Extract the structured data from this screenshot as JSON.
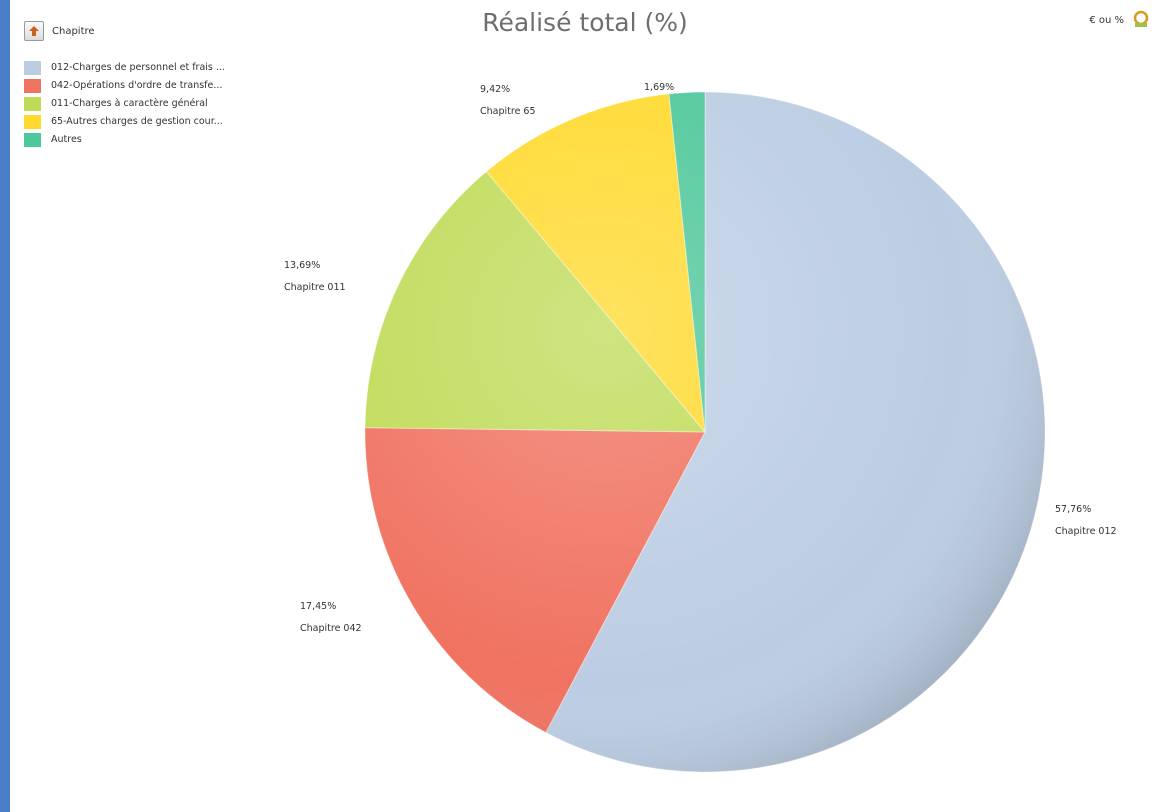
{
  "chart_data": {
    "type": "pie",
    "title": "Réalisé total (%)",
    "legend_title": "Chapitre",
    "legend_position": "top-left",
    "unit_toggle": "€ ou %",
    "slices": [
      {
        "legend": "012-Charges de personnel et frais ...",
        "label": "Chapitre 012",
        "percent_text": "57,76%",
        "value": 57.76,
        "color": "#bccde3"
      },
      {
        "legend": "042-Opérations d'ordre de transfe...",
        "label": "Chapitre 042",
        "percent_text": "17,45%",
        "value": 17.45,
        "color": "#f07260"
      },
      {
        "legend": "011-Charges à caractère général",
        "label": "Chapitre 011",
        "percent_text": "13,69%",
        "value": 13.69,
        "color": "#bfdb57"
      },
      {
        "legend": "65-Autres charges de gestion cour...",
        "label": "Chapitre 65",
        "percent_text": "9,42%",
        "value": 9.42,
        "color": "#ffd92c"
      },
      {
        "legend": "Autres",
        "label": "",
        "percent_text": "1,69%",
        "value": 1.69,
        "color": "#4ec79a"
      }
    ]
  }
}
